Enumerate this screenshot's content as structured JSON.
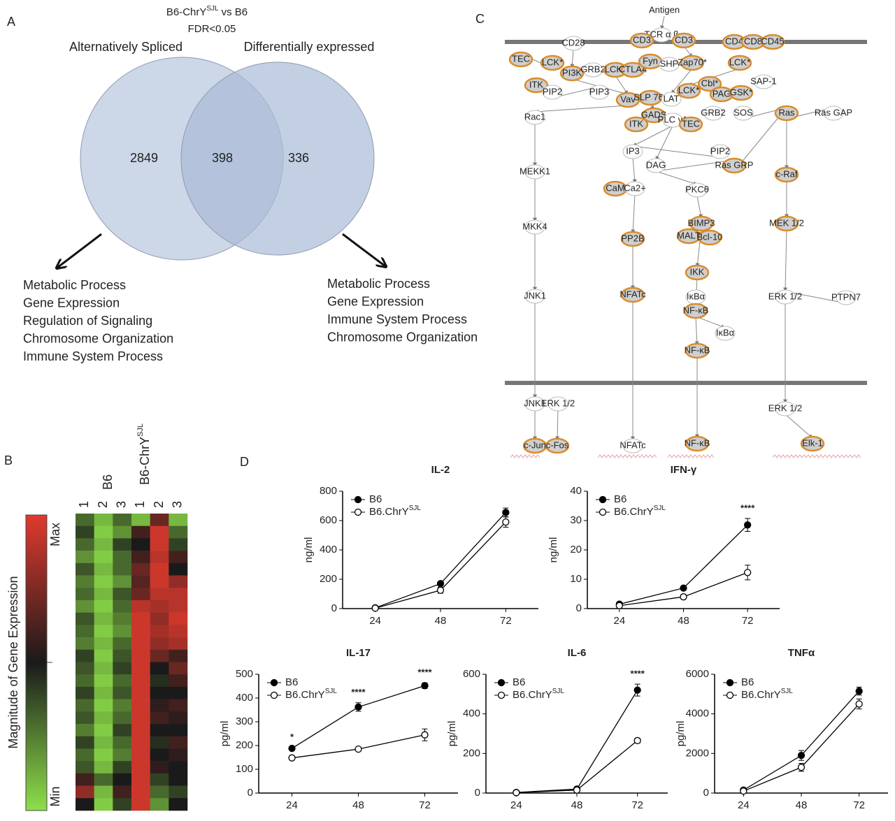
{
  "panel_a": {
    "letter": "A",
    "title_main": "B6-ChrY",
    "title_sup": "SJL",
    "title_rest": "vs B6",
    "subtitle": "FDR<0.05",
    "left_label": "Alternatively Spliced",
    "right_label": "Differentially expressed",
    "left_only": 2849,
    "both": 398,
    "right_only": 336,
    "left_terms": [
      "Metabolic Process",
      "Gene Expression",
      "Regulation of Signaling",
      "Chromosome Organization",
      "Immune System Process"
    ],
    "right_terms": [
      "Metabolic Process",
      "Gene Expression",
      "Immune System Process",
      "Chromosome Organization"
    ]
  },
  "panel_b": {
    "letter": "B",
    "group1": "B6",
    "group2_main": "B6-ChrY",
    "group2_sup": "SJL",
    "columns": [
      "1",
      "2",
      "3",
      "1",
      "2",
      "3"
    ],
    "scale_title": "Magnitude of Gene Expression",
    "scale_max": "Max",
    "scale_min": "Min",
    "matrix": [
      [
        0.3,
        0.1,
        0.3,
        0.1,
        0.7,
        0.1
      ],
      [
        0.4,
        0.05,
        0.2,
        0.6,
        0.95,
        0.3
      ],
      [
        0.3,
        0.1,
        0.4,
        0.5,
        0.95,
        0.4
      ],
      [
        0.2,
        0.05,
        0.3,
        0.6,
        0.9,
        0.6
      ],
      [
        0.35,
        0.1,
        0.3,
        0.7,
        0.95,
        0.5
      ],
      [
        0.25,
        0.05,
        0.2,
        0.65,
        0.95,
        0.8
      ],
      [
        0.3,
        0.1,
        0.35,
        0.7,
        0.9,
        0.9
      ],
      [
        0.2,
        0.05,
        0.3,
        0.9,
        0.85,
        0.9
      ],
      [
        0.35,
        0.1,
        0.25,
        0.95,
        0.8,
        0.95
      ],
      [
        0.3,
        0.05,
        0.2,
        0.95,
        0.85,
        0.9
      ],
      [
        0.25,
        0.1,
        0.3,
        0.95,
        0.8,
        0.85
      ],
      [
        0.4,
        0.05,
        0.35,
        0.95,
        0.7,
        0.6
      ],
      [
        0.35,
        0.1,
        0.4,
        0.95,
        0.5,
        0.7
      ],
      [
        0.3,
        0.05,
        0.3,
        0.95,
        0.45,
        0.6
      ],
      [
        0.4,
        0.1,
        0.35,
        0.95,
        0.5,
        0.5
      ],
      [
        0.3,
        0.05,
        0.25,
        0.95,
        0.55,
        0.6
      ],
      [
        0.35,
        0.1,
        0.3,
        0.95,
        0.6,
        0.55
      ],
      [
        0.25,
        0.05,
        0.4,
        0.95,
        0.5,
        0.5
      ],
      [
        0.4,
        0.1,
        0.3,
        0.95,
        0.45,
        0.6
      ],
      [
        0.3,
        0.05,
        0.25,
        0.95,
        0.5,
        0.55
      ],
      [
        0.35,
        0.1,
        0.4,
        0.95,
        0.55,
        0.5
      ],
      [
        0.6,
        0.3,
        0.5,
        0.95,
        0.4,
        0.5
      ],
      [
        0.8,
        0.1,
        0.6,
        0.95,
        0.3,
        0.4
      ],
      [
        0.5,
        0.05,
        0.4,
        0.95,
        0.2,
        0.5
      ]
    ]
  },
  "panel_c": {
    "letter": "C",
    "nodes": [
      {
        "label": "Antigen",
        "highlighted": false
      },
      {
        "label": "CD28",
        "highlighted": false
      },
      {
        "label": "TCR α β",
        "highlighted": false
      },
      {
        "label": "CD3",
        "highlighted": true
      },
      {
        "label": "CD3",
        "highlighted": true
      },
      {
        "label": "CD4",
        "highlighted": true
      },
      {
        "label": "CD8",
        "highlighted": true
      },
      {
        "label": "CD45",
        "highlighted": true
      },
      {
        "label": "TEC",
        "highlighted": true
      },
      {
        "label": "LCK*",
        "highlighted": true
      },
      {
        "label": "PI3K",
        "highlighted": true
      },
      {
        "label": "GRB2",
        "highlighted": false
      },
      {
        "label": "LCK*",
        "highlighted": true
      },
      {
        "label": "CTLA4",
        "highlighted": true
      },
      {
        "label": "Fyn",
        "highlighted": true
      },
      {
        "label": "SHP",
        "highlighted": false
      },
      {
        "label": "Zap70*",
        "highlighted": true
      },
      {
        "label": "LCK*",
        "highlighted": true
      },
      {
        "label": "SAP-1",
        "highlighted": false
      },
      {
        "label": "ITK",
        "highlighted": true
      },
      {
        "label": "PIP2",
        "highlighted": false
      },
      {
        "label": "PIP3",
        "highlighted": false
      },
      {
        "label": "Vav",
        "highlighted": true
      },
      {
        "label": "SLP 76*",
        "highlighted": true
      },
      {
        "label": "LAT",
        "highlighted": false
      },
      {
        "label": "LCK*",
        "highlighted": true
      },
      {
        "label": "Cbl*",
        "highlighted": true
      },
      {
        "label": "PAG",
        "highlighted": true
      },
      {
        "label": "GSK*",
        "highlighted": true
      },
      {
        "label": "Rac1",
        "highlighted": false
      },
      {
        "label": "GADS",
        "highlighted": true
      },
      {
        "label": "PLC γ1",
        "highlighted": false
      },
      {
        "label": "ITK",
        "highlighted": true
      },
      {
        "label": "TEC",
        "highlighted": true
      },
      {
        "label": "GRB2",
        "highlighted": false
      },
      {
        "label": "SOS",
        "highlighted": false
      },
      {
        "label": "Ras",
        "highlighted": true
      },
      {
        "label": "Ras GAP",
        "highlighted": false
      },
      {
        "label": "IP3",
        "highlighted": false
      },
      {
        "label": "PIP2",
        "highlighted": false
      },
      {
        "label": "DAG",
        "highlighted": false
      },
      {
        "label": "Ras GRP",
        "highlighted": true
      },
      {
        "label": "MEKK1",
        "highlighted": false
      },
      {
        "label": "c-Raf",
        "highlighted": true
      },
      {
        "label": "CaM",
        "highlighted": true
      },
      {
        "label": "Ca2+",
        "highlighted": false
      },
      {
        "label": "PKCθ",
        "highlighted": false
      },
      {
        "label": "BIMP3",
        "highlighted": true
      },
      {
        "label": "MALT",
        "highlighted": true
      },
      {
        "label": "Bcl-10",
        "highlighted": true
      },
      {
        "label": "MEK 1/2",
        "highlighted": true
      },
      {
        "label": "MKK4",
        "highlighted": false
      },
      {
        "label": "PP2B",
        "highlighted": true
      },
      {
        "label": "IKK",
        "highlighted": true
      },
      {
        "label": "JNK1",
        "highlighted": false
      },
      {
        "label": "NFATc",
        "highlighted": true
      },
      {
        "label": "IκBα",
        "highlighted": false
      },
      {
        "label": "NF-κB",
        "highlighted": true
      },
      {
        "label": "ERK 1/2",
        "highlighted": false
      },
      {
        "label": "PTPN7",
        "highlighted": false
      },
      {
        "label": "IκBα",
        "highlighted": false
      },
      {
        "label": "NF-κB",
        "highlighted": true
      },
      {
        "label": "JNK1",
        "highlighted": false
      },
      {
        "label": "ERK 1/2",
        "highlighted": false
      },
      {
        "label": "NFATc",
        "highlighted": false
      },
      {
        "label": "NF-κB",
        "highlighted": true
      },
      {
        "label": "ERK 1/2",
        "highlighted": false
      },
      {
        "label": "c-Jun",
        "highlighted": true
      },
      {
        "label": "c-Fos",
        "highlighted": true
      },
      {
        "label": "Elk-1",
        "highlighted": true
      }
    ]
  },
  "panel_d_letter": "D",
  "chart_data": [
    {
      "type": "line",
      "title": "IL-2",
      "y_label": "ng/ml",
      "categories": [
        24,
        48,
        72
      ],
      "ylim": [
        0,
        800
      ],
      "yticks": [
        0,
        200,
        400,
        600,
        800
      ],
      "series": [
        {
          "name": "B6",
          "filled": true,
          "color": "#000000",
          "values": [
            5,
            170,
            655
          ],
          "errors": [
            0,
            10,
            30
          ]
        },
        {
          "name": "B6.ChrY",
          "name_sup": "SJL",
          "filled": false,
          "color": "#000000",
          "values": [
            3,
            125,
            590
          ],
          "errors": [
            0,
            20,
            35
          ]
        }
      ],
      "annotations": []
    },
    {
      "type": "line",
      "title": "IFN-γ",
      "y_label": "ng/ml",
      "categories": [
        24,
        48,
        72
      ],
      "ylim": [
        0,
        40
      ],
      "yticks": [
        0,
        10,
        20,
        30,
        40
      ],
      "series": [
        {
          "name": "B6",
          "filled": true,
          "color": "#000000",
          "values": [
            1.5,
            7,
            28.5
          ],
          "errors": [
            0.3,
            0.3,
            2.2
          ]
        },
        {
          "name": "B6.ChrY",
          "name_sup": "SJL",
          "filled": false,
          "color": "#000000",
          "values": [
            1,
            4,
            12.3
          ],
          "errors": [
            0.3,
            0.8,
            2.5
          ]
        }
      ],
      "annotations": [
        {
          "x": 72,
          "text": "****"
        }
      ]
    },
    {
      "type": "line",
      "title": "IL-17",
      "y_label": "pg/ml",
      "categories": [
        24,
        48,
        72
      ],
      "ylim": [
        0,
        500
      ],
      "yticks": [
        0,
        100,
        200,
        300,
        400,
        500
      ],
      "series": [
        {
          "name": "B6",
          "filled": true,
          "color": "#000000",
          "values": [
            188,
            362,
            452
          ],
          "errors": [
            5,
            18,
            12
          ]
        },
        {
          "name": "B6.ChrY",
          "name_sup": "SJL",
          "filled": false,
          "color": "#000000",
          "values": [
            148,
            185,
            245
          ],
          "errors": [
            3,
            4,
            25
          ]
        }
      ],
      "annotations": [
        {
          "x": 24,
          "text": "*"
        },
        {
          "x": 48,
          "text": "****"
        },
        {
          "x": 72,
          "text": "****"
        }
      ]
    },
    {
      "type": "line",
      "title": "IL-6",
      "y_label": "pg/ml",
      "categories": [
        24,
        48,
        72
      ],
      "ylim": [
        0,
        600
      ],
      "yticks": [
        0,
        200,
        400,
        600
      ],
      "series": [
        {
          "name": "B6",
          "filled": true,
          "color": "#000000",
          "values": [
            3,
            20,
            520
          ],
          "errors": [
            1,
            5,
            30
          ]
        },
        {
          "name": "B6.ChrY",
          "name_sup": "SJL",
          "filled": false,
          "color": "#000000",
          "values": [
            2,
            15,
            265
          ],
          "errors": [
            1,
            3,
            12
          ]
        }
      ],
      "annotations": [
        {
          "x": 72,
          "text": "****"
        }
      ]
    },
    {
      "type": "line",
      "title": "TNFα",
      "y_label": "pg/ml",
      "categories": [
        24,
        48,
        72
      ],
      "ylim": [
        0,
        6000
      ],
      "yticks": [
        0,
        2000,
        4000,
        6000
      ],
      "series": [
        {
          "name": "B6",
          "filled": true,
          "color": "#000000",
          "values": [
            150,
            1900,
            5150
          ],
          "errors": [
            30,
            250,
            200
          ]
        },
        {
          "name": "B6.ChrY",
          "name_sup": "SJL",
          "filled": false,
          "color": "#000000",
          "values": [
            100,
            1300,
            4500
          ],
          "errors": [
            30,
            200,
            250
          ]
        }
      ],
      "annotations": []
    }
  ]
}
